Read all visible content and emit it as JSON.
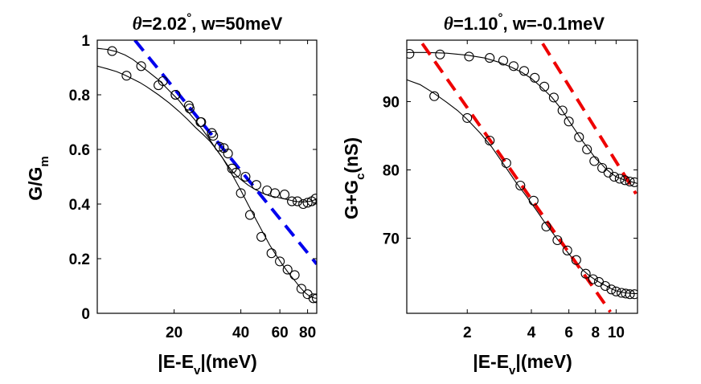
{
  "colors": {
    "left_dash": "#0000ee",
    "right_dash": "#ee0000",
    "markers": "#000000",
    "background": "#ffffff"
  },
  "chart_data": [
    {
      "type": "line",
      "title": {
        "prefix": "θ",
        "value": "=2.02",
        "degree": "°",
        "suffix": ", w=50meV"
      },
      "xlabel": {
        "main": "|E-E",
        "sub": "v",
        "tail": "|(meV)"
      },
      "ylabel": {
        "main": "G/G",
        "sub": "m"
      },
      "x_scale": "log",
      "xlim": [
        9,
        88
      ],
      "ylim": [
        0,
        1
      ],
      "xticks": [
        20,
        40,
        60,
        80
      ],
      "xtick_labels": [
        "20",
        "40",
        "60",
        "80"
      ],
      "yticks": [
        0,
        0.2,
        0.4,
        0.6,
        0.8,
        1
      ],
      "ytick_labels": [
        "0",
        "0.2",
        "0.4",
        "0.6",
        "0.8",
        "1"
      ],
      "grid": false,
      "series": [
        {
          "x": [
            10.5,
            14.2,
            17.8,
            20.3,
            23.3,
            26.3,
            29.6,
            32.0,
            35.0,
            38.0,
            42.0,
            47.0,
            52.5,
            57.0,
            63.0,
            68.0,
            72.0,
            76.5,
            80.0,
            83.5,
            87.0
          ],
          "y": [
            0.96,
            0.905,
            0.85,
            0.8,
            0.76,
            0.7,
            0.66,
            0.61,
            0.585,
            0.515,
            0.5,
            0.47,
            0.45,
            0.44,
            0.435,
            0.41,
            0.41,
            0.4,
            0.405,
            0.41,
            0.42
          ]
        },
        {
          "x": [
            12.2,
            17.0,
            20.3,
            23.5,
            26.5,
            30.0,
            33.5,
            36.5,
            40.0,
            44.0,
            49.5,
            55.0,
            60.0,
            65.0,
            70.0,
            75.0,
            80.0,
            85.0,
            88.0
          ],
          "y": [
            0.87,
            0.835,
            0.8,
            0.75,
            0.7,
            0.65,
            0.605,
            0.53,
            0.44,
            0.36,
            0.28,
            0.22,
            0.19,
            0.16,
            0.14,
            0.09,
            0.07,
            0.055,
            0.055
          ]
        }
      ],
      "fit_curves": [
        {
          "x": [
            9,
            10,
            11,
            12,
            13,
            14,
            15,
            17,
            19,
            21,
            23,
            25,
            27,
            29,
            31,
            33,
            35,
            37,
            40,
            43,
            46,
            50,
            54,
            58,
            62,
            66,
            70,
            74,
            78,
            82,
            86,
            88
          ],
          "y": [
            0.97,
            0.966,
            0.958,
            0.946,
            0.93,
            0.91,
            0.89,
            0.855,
            0.815,
            0.78,
            0.74,
            0.705,
            0.67,
            0.635,
            0.6,
            0.57,
            0.54,
            0.515,
            0.49,
            0.47,
            0.455,
            0.44,
            0.43,
            0.425,
            0.42,
            0.415,
            0.41,
            0.408,
            0.408,
            0.41,
            0.415,
            0.42
          ]
        },
        {
          "x": [
            9,
            10,
            11,
            12,
            13,
            14,
            15,
            17,
            19,
            21,
            23,
            25,
            27,
            29,
            31,
            33,
            35,
            37,
            40,
            43,
            46,
            50,
            54,
            58,
            62,
            66,
            70,
            74,
            78,
            82,
            86,
            88
          ],
          "y": [
            0.905,
            0.895,
            0.885,
            0.872,
            0.858,
            0.845,
            0.83,
            0.8,
            0.77,
            0.74,
            0.71,
            0.68,
            0.655,
            0.63,
            0.6,
            0.57,
            0.535,
            0.5,
            0.45,
            0.4,
            0.355,
            0.3,
            0.25,
            0.21,
            0.175,
            0.145,
            0.12,
            0.095,
            0.075,
            0.062,
            0.056,
            0.055
          ]
        }
      ],
      "dashed_line": {
        "x": [
          13.3,
          88
        ],
        "y": [
          1.0,
          0.18
        ]
      }
    },
    {
      "type": "line",
      "title": {
        "prefix": "θ",
        "value": "=1.10",
        "degree": "°",
        "suffix": ", w=-0.1meV"
      },
      "xlabel": {
        "main": "|E-E",
        "sub": "v",
        "tail": "|(meV)"
      },
      "ylabel": {
        "main": "G+G",
        "sub": "c",
        "tail": "(nS)"
      },
      "x_scale": "log",
      "xlim": [
        1.04,
        12.6
      ],
      "ylim": [
        59,
        99
      ],
      "xticks": [
        2,
        4,
        6,
        8,
        10
      ],
      "xtick_labels": [
        "2",
        "4",
        "6",
        "8",
        "10"
      ],
      "yticks": [
        70,
        80,
        90
      ],
      "ytick_labels": [
        "70",
        "80",
        "90"
      ],
      "grid": false,
      "series": [
        {
          "x": [
            1.07,
            1.49,
            2.04,
            2.55,
            2.95,
            3.3,
            3.7,
            4.15,
            4.6,
            5.1,
            5.6,
            6.0,
            6.7,
            7.3,
            7.9,
            8.6,
            9.2,
            9.8,
            10.4,
            11.0,
            11.6,
            12.2
          ],
          "y": [
            97.0,
            96.9,
            96.6,
            96.4,
            96.0,
            95.2,
            94.5,
            93.5,
            92.2,
            90.6,
            88.7,
            87.1,
            84.8,
            83.0,
            81.3,
            80.3,
            79.6,
            79.0,
            78.7,
            78.5,
            78.3,
            78.2
          ]
        },
        {
          "x": [
            1.4,
            2.0,
            2.55,
            3.05,
            3.55,
            4.1,
            4.7,
            5.3,
            5.9,
            6.5,
            7.2,
            7.8,
            8.3,
            8.9,
            9.5,
            10.0,
            10.6,
            11.1,
            11.6,
            12.2
          ],
          "y": [
            90.8,
            87.6,
            84.3,
            81.0,
            77.7,
            75.5,
            71.7,
            69.7,
            68.2,
            66.8,
            64.8,
            64.0,
            63.6,
            63.0,
            62.5,
            62.2,
            62.0,
            61.9,
            61.8,
            61.8
          ]
        }
      ],
      "fit_curves": [
        {
          "x": [
            1.04,
            1.3,
            1.6,
            2.0,
            2.4,
            2.8,
            3.2,
            3.6,
            4.0,
            4.5,
            5.0,
            5.5,
            6.0,
            6.5,
            7.0,
            7.5,
            8.0,
            8.5,
            9.0,
            9.5,
            10.0,
            11.0,
            12.0,
            12.6
          ],
          "y": [
            97.2,
            97.2,
            97.1,
            96.8,
            96.4,
            95.8,
            95.1,
            94.3,
            93.4,
            92.0,
            90.6,
            89.0,
            87.2,
            85.6,
            84.1,
            82.9,
            81.7,
            80.9,
            80.1,
            79.5,
            79.0,
            78.5,
            78.2,
            78.0
          ]
        },
        {
          "x": [
            1.04,
            1.2,
            1.4,
            1.6,
            1.8,
            2.0,
            2.3,
            2.6,
            3.0,
            3.4,
            3.8,
            4.2,
            4.6,
            5.0,
            5.5,
            6.0,
            6.5,
            7.0,
            7.5,
            8.0,
            8.5,
            9.0,
            9.5,
            10.0,
            11.0,
            12.0,
            12.6
          ],
          "y": [
            93.2,
            92.5,
            91.2,
            89.9,
            88.7,
            87.4,
            85.4,
            83.4,
            80.6,
            78.1,
            76.1,
            74.2,
            72.4,
            70.9,
            69.2,
            67.7,
            66.4,
            65.3,
            64.5,
            63.9,
            63.4,
            63.0,
            62.6,
            62.3,
            62.0,
            61.9,
            61.9
          ]
        }
      ],
      "dashed_lines": [
        {
          "x": [
            1.23,
            9.4
          ],
          "y": [
            98.5,
            59.2
          ]
        },
        {
          "x": [
            4.52,
            12.4
          ],
          "y": [
            98.5,
            76.5
          ]
        }
      ]
    }
  ]
}
